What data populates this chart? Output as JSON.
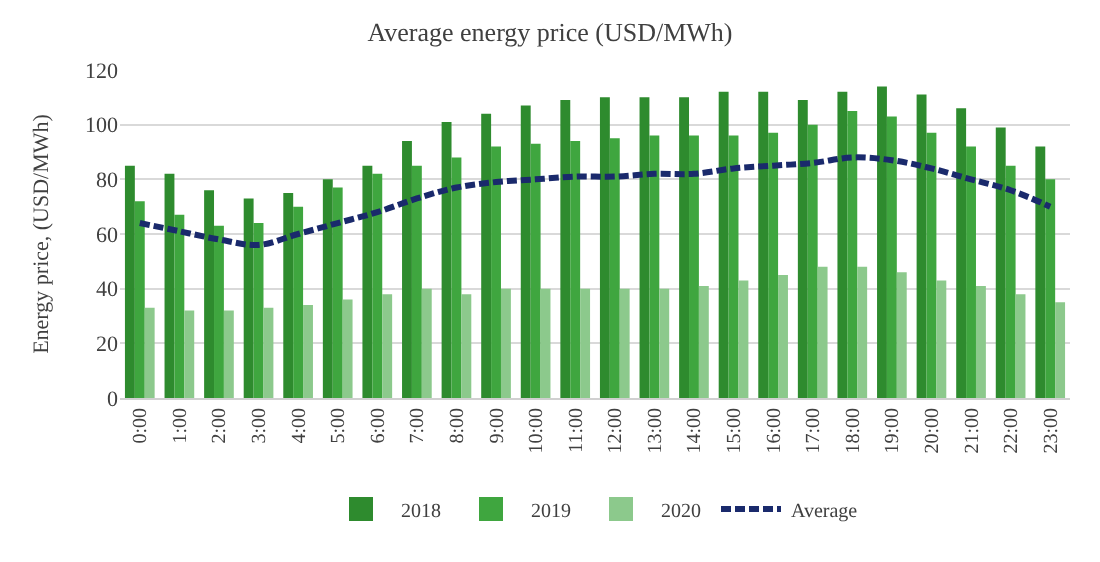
{
  "chart_data": {
    "type": "bar",
    "title": "Average energy price (USD/MWh)",
    "ylabel": "Energy price, (USD/MWh)",
    "categories": [
      "0:00",
      "1:00",
      "2:00",
      "3:00",
      "4:00",
      "5:00",
      "6:00",
      "7:00",
      "8:00",
      "9:00",
      "10:00",
      "11:00",
      "12:00",
      "13:00",
      "14:00",
      "15:00",
      "16:00",
      "17:00",
      "18:00",
      "19:00",
      "20:00",
      "21:00",
      "22:00",
      "23:00"
    ],
    "series": [
      {
        "name": "2018",
        "color": "#2e8b2e",
        "values": [
          85,
          82,
          76,
          73,
          75,
          80,
          85,
          94,
          101,
          104,
          107,
          109,
          110,
          110,
          110,
          112,
          112,
          109,
          112,
          114,
          111,
          106,
          99,
          92
        ]
      },
      {
        "name": "2019",
        "color": "#3fa63f",
        "values": [
          72,
          67,
          63,
          64,
          70,
          77,
          82,
          85,
          88,
          92,
          93,
          94,
          95,
          96,
          96,
          96,
          97,
          100,
          105,
          103,
          97,
          92,
          85,
          80
        ]
      },
      {
        "name": "2020",
        "color": "#8cc98c",
        "values": [
          33,
          32,
          32,
          33,
          34,
          36,
          38,
          40,
          38,
          40,
          40,
          40,
          40,
          40,
          41,
          43,
          45,
          48,
          48,
          46,
          43,
          41,
          38,
          35
        ]
      },
      {
        "name": "Average",
        "type": "line",
        "line_style": "dashed",
        "color": "#1a2a6c",
        "values": [
          64,
          61,
          58,
          56,
          60,
          64,
          68,
          73,
          77,
          79,
          80,
          81,
          81,
          82,
          82,
          84,
          85,
          86,
          88,
          87,
          84,
          80,
          76,
          70
        ]
      }
    ],
    "ylim": [
      0,
      120
    ],
    "yticks": [
      0,
      20,
      40,
      60,
      80,
      100,
      120
    ],
    "grid": "y",
    "legend": "bottom"
  }
}
